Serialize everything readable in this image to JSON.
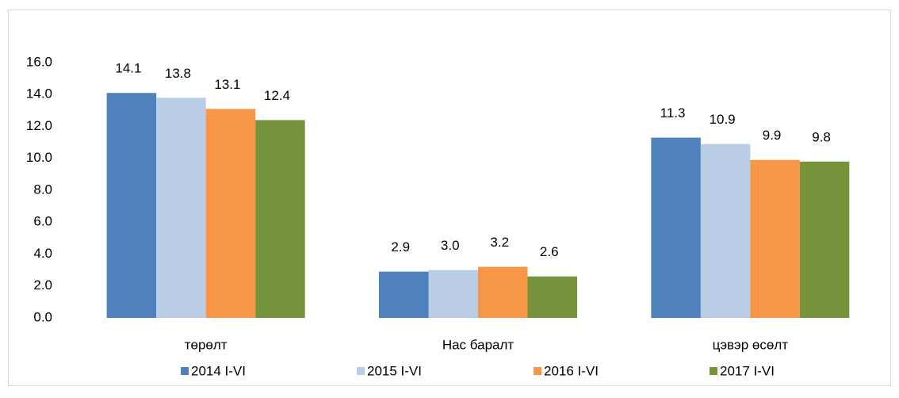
{
  "chart_data": {
    "type": "bar",
    "categories": [
      "төрөлт",
      "Нас баралт",
      "цэвэр өсөлт"
    ],
    "series": [
      {
        "name": "2014 I-VI",
        "color": "#4f81bd",
        "values": [
          14.1,
          2.9,
          11.3
        ],
        "value_labels": [
          "14.1",
          "2.9",
          "11.3"
        ]
      },
      {
        "name": "2015 I-VI",
        "color": "#b9cde5",
        "values": [
          13.8,
          3.0,
          10.9
        ],
        "value_labels": [
          "13.8",
          "3.0",
          "10.9"
        ]
      },
      {
        "name": "2016 I-VI",
        "color": "#f79646",
        "values": [
          13.1,
          3.2,
          9.9
        ],
        "value_labels": [
          "13.1",
          "3.2",
          "9.9"
        ]
      },
      {
        "name": "2017 I-VI",
        "color": "#77933c",
        "values": [
          12.4,
          2.6,
          9.8
        ],
        "value_labels": [
          "12.4",
          "2.6",
          "9.8"
        ]
      }
    ],
    "ylim": [
      0,
      16
    ],
    "yticks": [
      {
        "value": 0,
        "label": "0.0"
      },
      {
        "value": 2,
        "label": "2.0"
      },
      {
        "value": 4,
        "label": "4.0"
      },
      {
        "value": 6,
        "label": "6.0"
      },
      {
        "value": 8,
        "label": "8.0"
      },
      {
        "value": 10,
        "label": "10.0"
      },
      {
        "value": 12,
        "label": "12.0"
      },
      {
        "value": 14,
        "label": "14.0"
      },
      {
        "value": 16,
        "label": "16.0"
      }
    ],
    "grid": false,
    "legend": "bottom"
  }
}
